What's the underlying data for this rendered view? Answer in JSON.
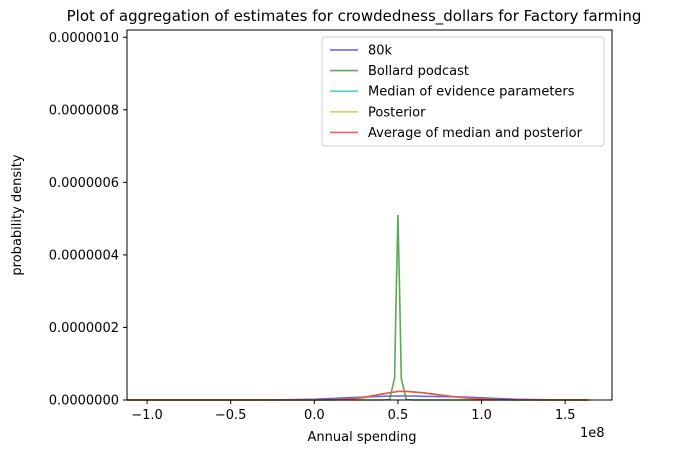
{
  "chart_data": {
    "type": "line",
    "title": "Plot of aggregation of estimates for crowdedness_dollars for Factory farming",
    "xlabel": "Annual spending",
    "ylabel": "probability density",
    "x_offset_label": "1e8",
    "xlim": [
      -1.12,
      1.78
    ],
    "ylim": [
      0,
      1.02e-06
    ],
    "x_ticks": [
      -1.0,
      -0.5,
      0.0,
      0.5,
      1.0,
      1.5
    ],
    "x_tick_labels": [
      "−1.0",
      "−0.5",
      "0.0",
      "0.5",
      "1.0",
      "1.5"
    ],
    "y_ticks": [
      0,
      2e-07,
      4e-07,
      6e-07,
      8e-07,
      1e-06
    ],
    "y_tick_labels": [
      "0.0000000",
      "0.0000002",
      "0.0000004",
      "0.0000006",
      "0.0000008",
      "0.0000010"
    ],
    "legend_position": "top-right",
    "grid": false,
    "x": [
      -1.12,
      -1.0,
      -0.8,
      -0.6,
      -0.4,
      -0.2,
      0.0,
      0.1,
      0.2,
      0.3,
      0.35,
      0.4,
      0.45,
      0.48,
      0.49,
      0.5,
      0.51,
      0.52,
      0.55,
      0.6,
      0.65,
      0.7,
      0.8,
      0.9,
      1.0,
      1.1,
      1.2,
      1.4,
      1.64
    ],
    "series": [
      {
        "name": "80k",
        "color": "#4444ee",
        "values": [
          0,
          0,
          0,
          0,
          0,
          5e-10,
          2e-09,
          4e-09,
          6e-09,
          8e-09,
          9e-09,
          1e-08,
          1.1e-08,
          1.1e-08,
          1.1e-08,
          1.1e-08,
          1.1e-08,
          1.1e-08,
          1.1e-08,
          1.1e-08,
          1e-08,
          1e-08,
          9e-09,
          8e-09,
          6e-09,
          4e-09,
          2e-09,
          5e-10,
          0
        ]
      },
      {
        "name": "Bollard podcast",
        "color": "#3c9a3c",
        "values": [
          0,
          0,
          0,
          0,
          0,
          0,
          0,
          0,
          0,
          0,
          0,
          0,
          1e-09,
          6e-08,
          3e-07,
          5.1e-07,
          3e-07,
          6e-08,
          1e-09,
          0,
          0,
          0,
          0,
          0,
          0,
          0,
          0,
          0,
          0
        ]
      },
      {
        "name": "Median of evidence parameters",
        "color": "#33cccc",
        "values": [
          0,
          0,
          0,
          0,
          0,
          0,
          0,
          5e-10,
          2e-09,
          7e-09,
          1.2e-08,
          1.6e-08,
          2e-08,
          2.2e-08,
          2.3e-08,
          2.4e-08,
          2.4e-08,
          2.4e-08,
          2.4e-08,
          2.2e-08,
          2e-08,
          1.7e-08,
          1.1e-08,
          6e-09,
          3e-09,
          1e-09,
          5e-10,
          0,
          0
        ]
      },
      {
        "name": "Posterior",
        "color": "#cccc44",
        "values": [
          0,
          0,
          0,
          0,
          0,
          0,
          0,
          5e-10,
          2e-09,
          7e-09,
          1.2e-08,
          1.6e-08,
          2e-08,
          2.2e-08,
          2.3e-08,
          2.4e-08,
          2.4e-08,
          2.4e-08,
          2.4e-08,
          2.2e-08,
          2e-08,
          1.7e-08,
          1.1e-08,
          6e-09,
          3e-09,
          1e-09,
          5e-10,
          0,
          0
        ]
      },
      {
        "name": "Average of median and posterior",
        "color": "#ee4444",
        "values": [
          0,
          0,
          0,
          0,
          0,
          0,
          0,
          5e-10,
          2e-09,
          7e-09,
          1.2e-08,
          1.6e-08,
          2e-08,
          2.2e-08,
          2.3e-08,
          2.4e-08,
          2.4e-08,
          2.4e-08,
          2.4e-08,
          2.2e-08,
          2e-08,
          1.7e-08,
          1.1e-08,
          6e-09,
          3e-09,
          1e-09,
          5e-10,
          0,
          0
        ]
      }
    ]
  }
}
